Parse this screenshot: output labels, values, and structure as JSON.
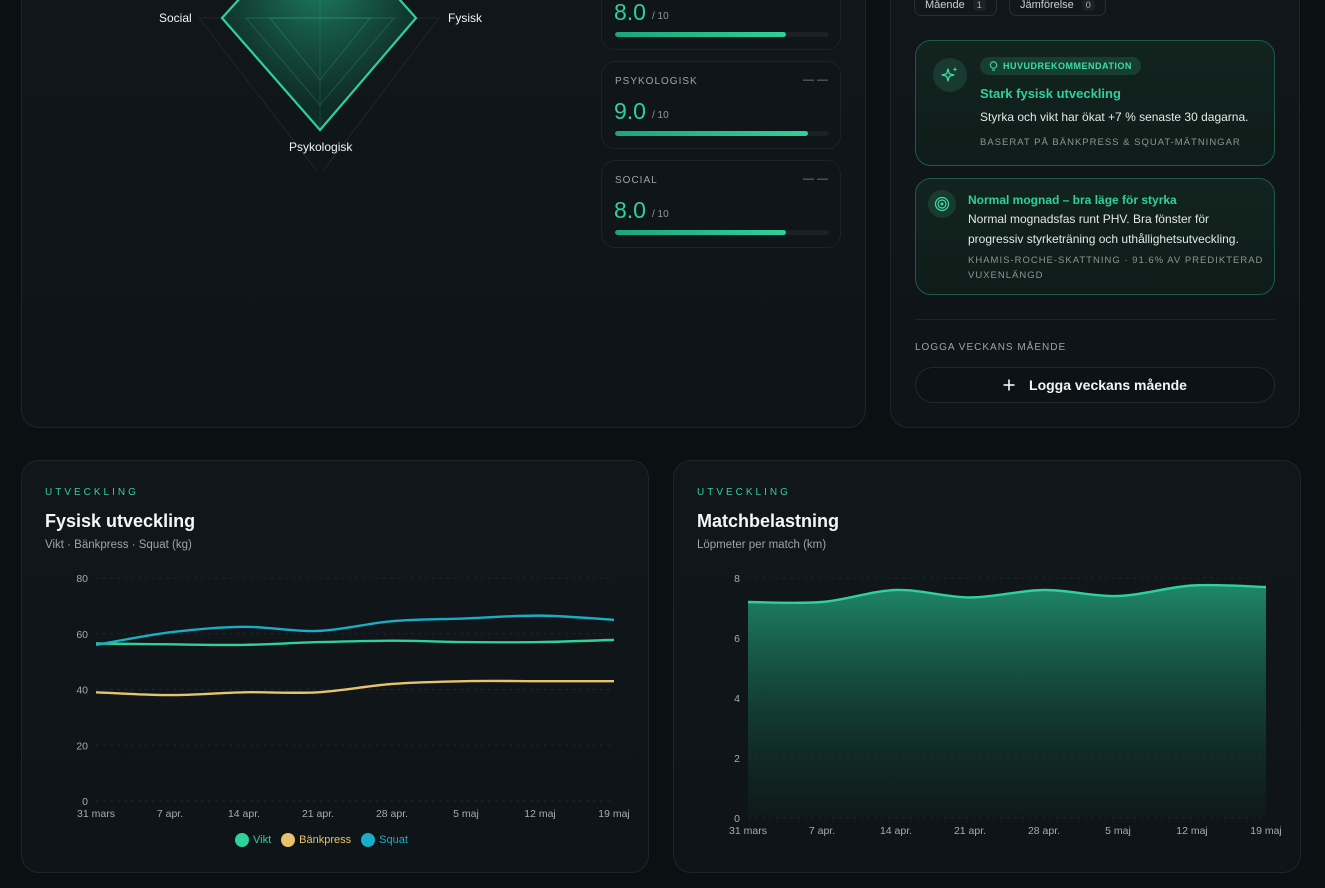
{
  "radar": {
    "labels": {
      "top_left": "Social",
      "top_right": "Fysisk",
      "bottom": "Psykologisk"
    }
  },
  "scores": [
    {
      "label": "",
      "value": "8.0",
      "denominator": "/ 10",
      "dash": "",
      "fill": 0.8
    },
    {
      "label": "PSYKOLOGISK",
      "value": "9.0",
      "denominator": "/ 10",
      "dash": "— —",
      "fill": 0.9
    },
    {
      "label": "SOCIAL",
      "value": "8.0",
      "denominator": "/ 10",
      "dash": "— —",
      "fill": 0.8
    }
  ],
  "tabs": [
    {
      "label": "Mående",
      "count": "1"
    },
    {
      "label": "Jämförelse",
      "count": "0"
    }
  ],
  "recommendation": {
    "pill": "HUVUDREKOMMENDATION",
    "title": "Stark fysisk utveckling",
    "text": "Styrka och vikt har ökat +7 % senaste 30 dagarna.",
    "source": "BASERAT PÅ BÄNKPRESS & SQUAT-MÄTNINGAR",
    "icon": "sparkles-icon"
  },
  "maturity": {
    "title": "Normal mognad – bra läge för styrka",
    "text_line1": "Normal mognadsfas runt PHV. Bra fönster för",
    "text_line2": "progressiv styrketräning och uthållighetsutveckling.",
    "source_line1": "KHAMIS-ROCHE-SKATTNING · 91.6% AV PREDIKTERAD",
    "source_line2": "VUXENLÄNGD",
    "icon": "target-icon"
  },
  "log": {
    "section_label": "LOGGA VECKANS MÅENDE",
    "button_label": "Logga veckans mående",
    "icon": "plus-icon"
  },
  "physical": {
    "eyebrow": "UTVECKLING",
    "title": "Fysisk utveckling",
    "subtitle": "Vikt · Bänkpress · Squat (kg)"
  },
  "match": {
    "eyebrow": "UTVECKLING",
    "title": "Matchbelastning",
    "subtitle": "Löpmeter per match (km)"
  },
  "colors": {
    "accent": "#2fd199",
    "bench": "#e7c46b",
    "squat": "#19aec6",
    "background": "#0b1013"
  },
  "chart_data": [
    {
      "type": "line",
      "categories": [
        "31 mars",
        "7 apr.",
        "14 apr.",
        "21 apr.",
        "28 apr.",
        "5 maj",
        "12 maj",
        "19 maj"
      ],
      "series": [
        {
          "name": "Vikt",
          "color": "#2fd199",
          "values": [
            56.5,
            56.2,
            56.0,
            57.0,
            57.5,
            57.0,
            57.0,
            57.8
          ]
        },
        {
          "name": "Bänkpress",
          "color": "#e7c46b",
          "values": [
            39.0,
            38.0,
            39.0,
            39.0,
            42.0,
            43.0,
            43.0,
            43.0
          ]
        },
        {
          "name": "Squat",
          "color": "#19aec6",
          "values": [
            56.0,
            60.5,
            62.5,
            61.0,
            64.5,
            65.5,
            66.5,
            65.0
          ]
        }
      ],
      "ylim": [
        0,
        80
      ],
      "yticks": [
        "0",
        "20",
        "40",
        "60",
        "80"
      ],
      "grid": true,
      "legend": "bottom"
    },
    {
      "type": "area",
      "categories": [
        "31 mars",
        "7 apr.",
        "14 apr.",
        "21 apr.",
        "28 apr.",
        "5 maj",
        "12 maj",
        "19 maj"
      ],
      "series": [
        {
          "name": "",
          "color": "#2fd199",
          "values": [
            7.2,
            7.2,
            7.6,
            7.35,
            7.6,
            7.4,
            7.75,
            7.7
          ]
        }
      ],
      "ylim": [
        0,
        8
      ],
      "yticks": [
        "0",
        "2",
        "4",
        "6",
        "8"
      ],
      "grid": true,
      "legend": "none"
    }
  ]
}
